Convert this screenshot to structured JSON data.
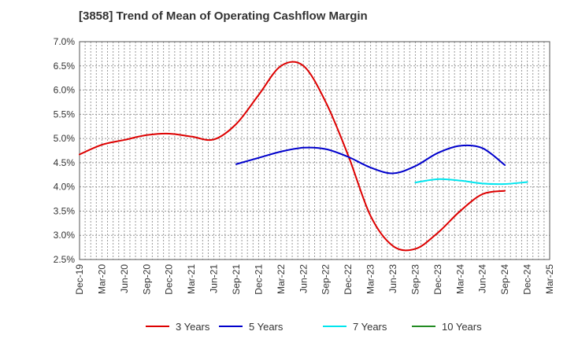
{
  "header": {
    "title": "[3858]  Trend of Mean of Operating Cashflow Margin"
  },
  "chart_data": {
    "type": "line",
    "title": "[3858]  Trend of Mean of Operating Cashflow Margin",
    "xlabel": "",
    "ylabel": "",
    "ylim": [
      2.5,
      7.0
    ],
    "y_unit": "%",
    "y_ticks": [
      "2.5%",
      "3.0%",
      "3.5%",
      "4.0%",
      "4.5%",
      "5.0%",
      "5.5%",
      "6.0%",
      "6.5%",
      "7.0%"
    ],
    "x_ticks": [
      "Dec-19",
      "Mar-20",
      "Jun-20",
      "Sep-20",
      "Dec-20",
      "Mar-21",
      "Jun-21",
      "Sep-21",
      "Dec-21",
      "Mar-22",
      "Jun-22",
      "Sep-22",
      "Dec-22",
      "Mar-23",
      "Jun-23",
      "Sep-23",
      "Dec-23",
      "Mar-24",
      "Jun-24",
      "Sep-24",
      "Dec-24",
      "Mar-25"
    ],
    "grid": true,
    "legend_position": "bottom",
    "series": [
      {
        "name": "3 Years",
        "color": "#dd0000",
        "start_index": 0,
        "values": [
          4.67,
          4.87,
          4.97,
          5.07,
          5.1,
          5.04,
          4.98,
          5.3,
          5.9,
          6.5,
          6.5,
          5.75,
          4.65,
          3.4,
          2.78,
          2.72,
          3.05,
          3.5,
          3.85,
          3.92
        ]
      },
      {
        "name": "5 Years",
        "color": "#0000cc",
        "start_index": 7,
        "values": [
          4.47,
          4.6,
          4.73,
          4.81,
          4.78,
          4.62,
          4.4,
          4.28,
          4.43,
          4.7,
          4.85,
          4.8,
          4.45
        ]
      },
      {
        "name": "7 Years",
        "color": "#00e5ee",
        "start_index": 15,
        "values": [
          4.09,
          4.16,
          4.13,
          4.07,
          4.06,
          4.1
        ]
      },
      {
        "name": "10 Years",
        "color": "#228b22",
        "start_index": 0,
        "values": []
      }
    ]
  }
}
